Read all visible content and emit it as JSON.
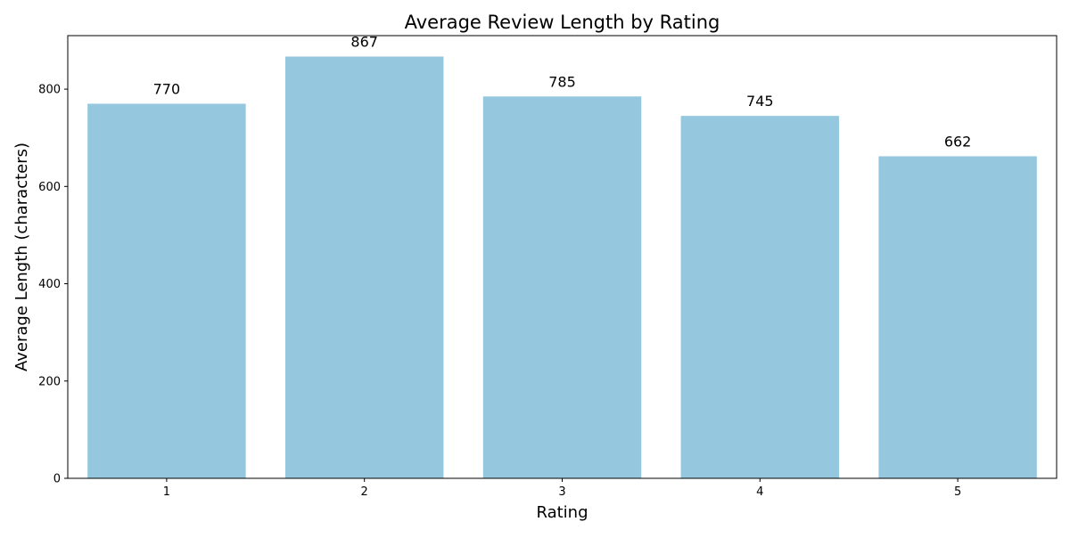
{
  "chart_data": {
    "type": "bar",
    "title": "Average Review Length by Rating",
    "xlabel": "Rating",
    "ylabel": "Average Length (characters)",
    "categories": [
      "1",
      "2",
      "3",
      "4",
      "5"
    ],
    "values": [
      770,
      867,
      785,
      745,
      662
    ],
    "data_labels": [
      "770",
      "867",
      "785",
      "745",
      "662"
    ],
    "ylim": [
      0,
      910
    ],
    "yticks": [
      0,
      200,
      400,
      600,
      800
    ],
    "ytick_labels": [
      "0",
      "200",
      "400",
      "600",
      "800"
    ],
    "bar_color": "#95c8de",
    "grid": false,
    "legend": false
  }
}
